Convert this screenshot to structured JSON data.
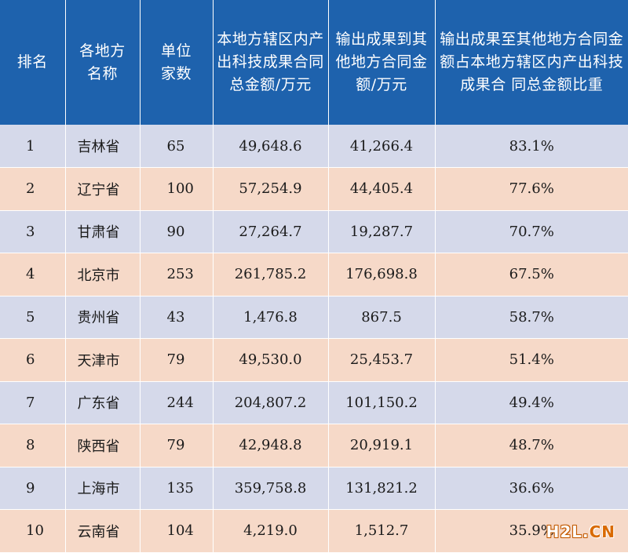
{
  "table": {
    "headers": {
      "rank": "排名",
      "region_l1": "各地方",
      "region_l2": "名称",
      "units_l1": "单位",
      "units_l2": "家数",
      "total_l1": "本地方辖区内产",
      "total_l2": "出科技成果合同",
      "total_l3": "总金额/万元",
      "output_l1": "输出成果到其",
      "output_l2": "他地方合同金",
      "output_l3": "额/万元",
      "ratio_l1": "输出成果至其他地方合同金",
      "ratio_l2": "额占本地方辖区内产出科技",
      "ratio_l3": "成果合 同总金额比重"
    },
    "rows": [
      {
        "rank": "1",
        "region": "吉林省",
        "units": "65",
        "total": "49,648.6",
        "output": "41,266.4",
        "ratio": "83.1%"
      },
      {
        "rank": "2",
        "region": "辽宁省",
        "units": "100",
        "total": "57,254.9",
        "output": "44,405.4",
        "ratio": "77.6%"
      },
      {
        "rank": "3",
        "region": "甘肃省",
        "units": "90",
        "total": "27,264.7",
        "output": "19,287.7",
        "ratio": "70.7%"
      },
      {
        "rank": "4",
        "region": "北京市",
        "units": "253",
        "total": "261,785.2",
        "output": "176,698.8",
        "ratio": "67.5%"
      },
      {
        "rank": "5",
        "region": "贵州省",
        "units": "43",
        "total": "1,476.8",
        "output": "867.5",
        "ratio": "58.7%"
      },
      {
        "rank": "6",
        "region": "天津市",
        "units": "79",
        "total": "49,530.0",
        "output": "25,453.7",
        "ratio": "51.4%"
      },
      {
        "rank": "7",
        "region": "广东省",
        "units": "244",
        "total": "204,807.2",
        "output": "101,150.2",
        "ratio": "49.4%"
      },
      {
        "rank": "8",
        "region": "陕西省",
        "units": "79",
        "total": "42,948.8",
        "output": "20,919.1",
        "ratio": "48.7%"
      },
      {
        "rank": "9",
        "region": "上海市",
        "units": "135",
        "total": "359,758.8",
        "output": "131,821.2",
        "ratio": "36.6%"
      },
      {
        "rank": "10",
        "region": "云南省",
        "units": "104",
        "total": "4,219.0",
        "output": "1,512.7",
        "ratio": "35.9%"
      }
    ]
  },
  "watermark": {
    "text_main": "H2L.",
    "text_suffix": "CN"
  },
  "colors": {
    "header_bg": "#1e62ad",
    "row_odd": "#d5d9ea",
    "row_even": "#f6d9c8"
  }
}
